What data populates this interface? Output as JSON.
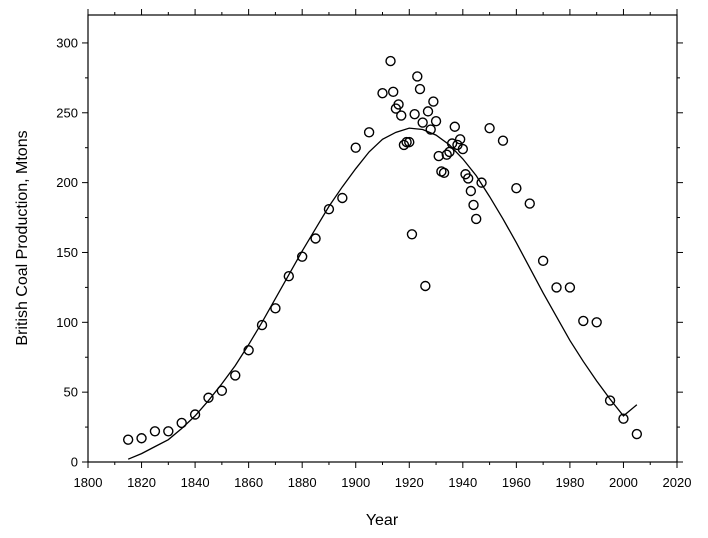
{
  "chart_data": {
    "type": "scatter",
    "xlabel": "Year",
    "ylabel": "British Coal Production, Mtons",
    "xlim": [
      1800,
      2020
    ],
    "ylim": [
      0,
      320
    ],
    "xticks": [
      1800,
      1820,
      1840,
      1860,
      1880,
      1900,
      1920,
      1940,
      1960,
      1980,
      2000,
      2020
    ],
    "yticks": [
      0,
      50,
      100,
      150,
      200,
      250,
      300
    ],
    "grid": false,
    "series": [
      {
        "style": "open-circle-markers",
        "points": [
          [
            1815,
            16
          ],
          [
            1820,
            17
          ],
          [
            1825,
            22
          ],
          [
            1830,
            22
          ],
          [
            1835,
            28
          ],
          [
            1840,
            34
          ],
          [
            1845,
            46
          ],
          [
            1850,
            51
          ],
          [
            1855,
            62
          ],
          [
            1860,
            80
          ],
          [
            1865,
            98
          ],
          [
            1870,
            110
          ],
          [
            1875,
            133
          ],
          [
            1880,
            147
          ],
          [
            1885,
            160
          ],
          [
            1890,
            181
          ],
          [
            1895,
            189
          ],
          [
            1900,
            225
          ],
          [
            1905,
            236
          ],
          [
            1910,
            264
          ],
          [
            1913,
            287
          ],
          [
            1914,
            265
          ],
          [
            1915,
            253
          ],
          [
            1916,
            256
          ],
          [
            1917,
            248
          ],
          [
            1918,
            227
          ],
          [
            1919,
            229
          ],
          [
            1920,
            229
          ],
          [
            1921,
            163
          ],
          [
            1922,
            249
          ],
          [
            1923,
            276
          ],
          [
            1924,
            267
          ],
          [
            1925,
            243
          ],
          [
            1926,
            126
          ],
          [
            1927,
            251
          ],
          [
            1928,
            238
          ],
          [
            1929,
            258
          ],
          [
            1930,
            244
          ],
          [
            1931,
            219
          ],
          [
            1932,
            208
          ],
          [
            1933,
            207
          ],
          [
            1934,
            220
          ],
          [
            1935,
            222
          ],
          [
            1936,
            228
          ],
          [
            1937,
            240
          ],
          [
            1938,
            227
          ],
          [
            1939,
            231
          ],
          [
            1940,
            224
          ],
          [
            1941,
            206
          ],
          [
            1942,
            203
          ],
          [
            1943,
            194
          ],
          [
            1944,
            184
          ],
          [
            1945,
            174
          ],
          [
            1947,
            200
          ],
          [
            1950,
            239
          ],
          [
            1955,
            230
          ],
          [
            1960,
            196
          ],
          [
            1965,
            185
          ],
          [
            1970,
            144
          ],
          [
            1975,
            125
          ],
          [
            1980,
            125
          ],
          [
            1985,
            101
          ],
          [
            1990,
            100
          ],
          [
            1995,
            44
          ],
          [
            2000,
            31
          ],
          [
            2005,
            20
          ]
        ]
      },
      {
        "style": "fitted-curve-line",
        "points": [
          [
            1815,
            2
          ],
          [
            1820,
            6
          ],
          [
            1825,
            11
          ],
          [
            1830,
            16
          ],
          [
            1835,
            24
          ],
          [
            1840,
            33
          ],
          [
            1845,
            44
          ],
          [
            1850,
            56
          ],
          [
            1855,
            69
          ],
          [
            1860,
            84
          ],
          [
            1865,
            100
          ],
          [
            1870,
            117
          ],
          [
            1875,
            134
          ],
          [
            1880,
            151
          ],
          [
            1885,
            167
          ],
          [
            1890,
            183
          ],
          [
            1895,
            197
          ],
          [
            1900,
            210
          ],
          [
            1905,
            222
          ],
          [
            1910,
            231
          ],
          [
            1915,
            236
          ],
          [
            1920,
            239
          ],
          [
            1925,
            238
          ],
          [
            1930,
            234
          ],
          [
            1935,
            227
          ],
          [
            1940,
            217
          ],
          [
            1945,
            205
          ],
          [
            1950,
            190
          ],
          [
            1955,
            174
          ],
          [
            1960,
            157
          ],
          [
            1965,
            139
          ],
          [
            1970,
            121
          ],
          [
            1975,
            104
          ],
          [
            1980,
            87
          ],
          [
            1985,
            72
          ],
          [
            1990,
            58
          ],
          [
            1995,
            45
          ],
          [
            2000,
            33
          ],
          [
            2005,
            41
          ]
        ]
      }
    ]
  }
}
